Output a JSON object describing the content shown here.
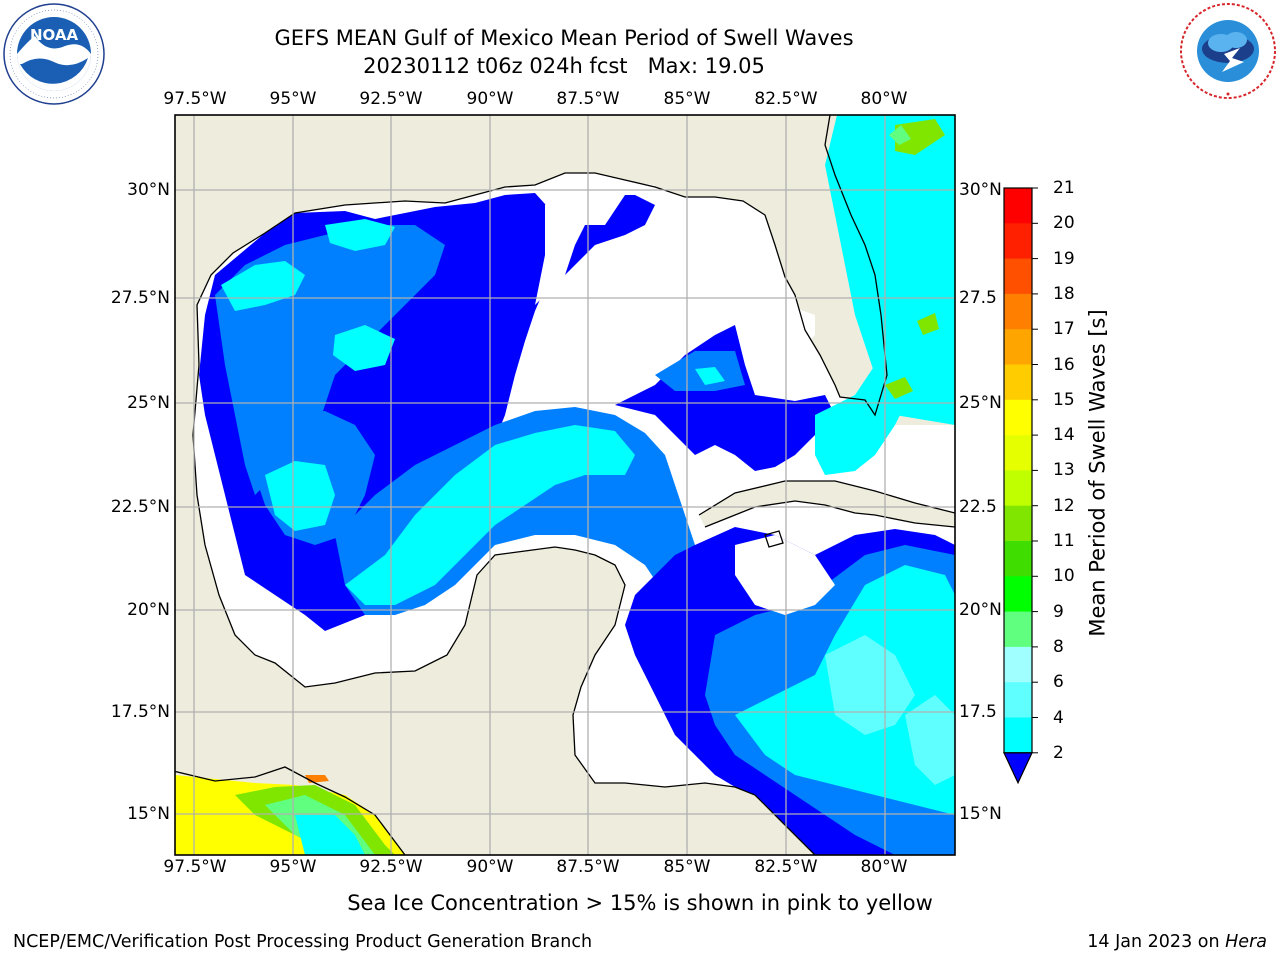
{
  "header": {
    "title_line1": "GEFS MEAN Gulf of Mexico Mean Period of Swell Waves",
    "title_line2": "20230112 t06z 024h fcst   Max: 19.05"
  },
  "logos": {
    "noaa_text": "NOAA",
    "noaa_ring": "NATIONAL OCEANIC AND ATMOSPHERIC ADMINISTRATION · U.S. DEPARTMENT OF COMMERCE",
    "nws_ring": "NATIONAL WEATHER SERVICE"
  },
  "map": {
    "lon_labels": [
      "97.5°W",
      "95°W",
      "92.5°W",
      "90°W",
      "87.5°W",
      "85°W",
      "82.5°W",
      "80°W"
    ],
    "lat_labels_left": [
      "30°N",
      "27.5°N",
      "25°N",
      "22.5°N",
      "20°N",
      "17.5°N",
      "15°N"
    ],
    "lat_labels_right": [
      "30°N",
      "27.5",
      "25°N",
      "22.5",
      "20°N",
      "17.5",
      "15°N"
    ],
    "colors": {
      "land": "#eeecdc",
      "ocean_nodata": "#ffffff",
      "grid": "#b0b0b0"
    }
  },
  "colorbar": {
    "label": "Mean Period of Swell Waves [s]",
    "ticks": [
      "2",
      "4",
      "6",
      "8",
      "9",
      "10",
      "11",
      "12",
      "13",
      "14",
      "15",
      "16",
      "17",
      "18",
      "19",
      "20",
      "21"
    ],
    "colors": [
      "#0000ff",
      "#0080ff",
      "#00ffff",
      "#60ffff",
      "#a0ffff",
      "#60ff80",
      "#00ff00",
      "#40dd00",
      "#80e600",
      "#c0ff00",
      "#e6ff00",
      "#ffff00",
      "#ffcc00",
      "#ffa500",
      "#ff8000",
      "#ff5000",
      "#ff2000",
      "#ff0000"
    ]
  },
  "notes": {
    "sea_ice": "Sea Ice Concentration > 15% is shown in pink to yellow"
  },
  "footer": {
    "left": "NCEP/EMC/Verification Post Processing Product Generation Branch",
    "date": "14 Jan 2023 on ",
    "host": "Hera"
  }
}
